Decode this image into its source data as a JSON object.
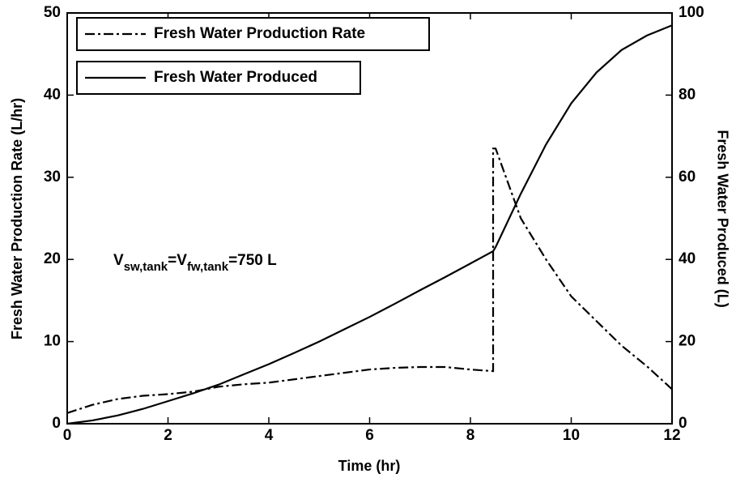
{
  "chart_data": {
    "type": "line",
    "xlabel": "Time (hr)",
    "ylabel": "Fresh Water Production Rate (L/hr)",
    "y2label": "Fresh Water Produced (L)",
    "annotation": [
      "V",
      "sw,tank",
      "=V",
      "fw,tank",
      "=750 L"
    ],
    "xlim": [
      0,
      12
    ],
    "xticks": [
      0,
      2,
      4,
      6,
      8,
      10,
      12
    ],
    "ylim": [
      0,
      50
    ],
    "yticks": [
      0,
      10,
      20,
      30,
      40,
      50
    ],
    "y2lim": [
      0,
      100
    ],
    "y2ticks": [
      0,
      20,
      40,
      60,
      80,
      100
    ],
    "grid": false,
    "x": [
      0,
      0.5,
      1,
      1.5,
      2,
      2.5,
      3,
      3.5,
      4,
      4.5,
      5,
      5.5,
      6,
      6.5,
      7,
      7.5,
      8,
      8.45,
      8.45,
      8.5,
      9,
      9.5,
      10,
      10.5,
      11,
      11.5,
      12
    ],
    "series": [
      {
        "name": "Fresh Water Production Rate",
        "color": "#000000",
        "dash": "dashdot",
        "axis": "y",
        "values": [
          1.3,
          2.3,
          3,
          3.4,
          3.6,
          3.9,
          4.5,
          4.8,
          5,
          5.4,
          5.8,
          6.2,
          6.6,
          6.8,
          6.9,
          6.9,
          6.6,
          6.4,
          33.5,
          33.5,
          25,
          20,
          15.5,
          12.5,
          9.5,
          7,
          4.2
        ]
      },
      {
        "name": "Fresh Water Produced",
        "color": "#000000",
        "dash": "solid",
        "axis": "y2",
        "values": [
          0,
          0.8,
          2,
          3.6,
          5.5,
          7.4,
          9.5,
          12,
          14.5,
          17.2,
          20,
          23,
          26,
          29.2,
          32.5,
          35.7,
          39,
          42,
          42,
          43,
          56,
          68,
          78,
          85.5,
          91,
          94.5,
          97
        ]
      }
    ]
  }
}
